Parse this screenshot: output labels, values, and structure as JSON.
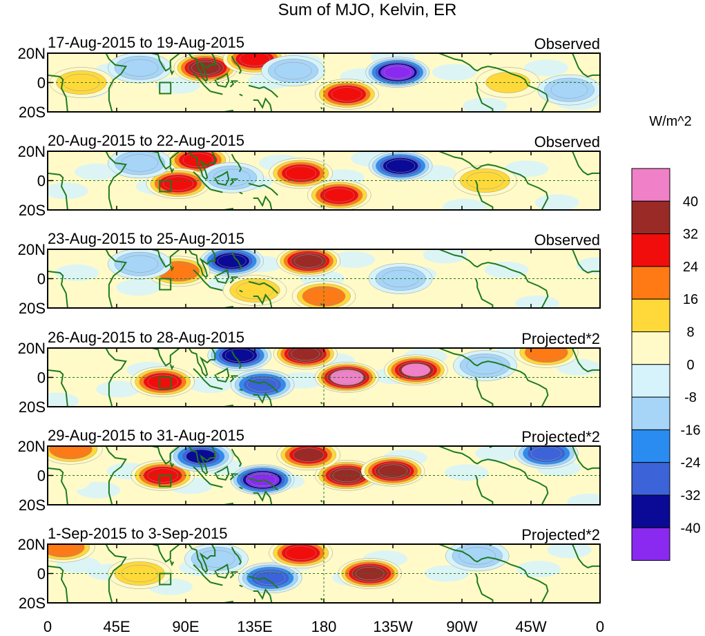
{
  "chart_data": {
    "type": "heatmap",
    "title": "Sum of MJO, Kelvin, ER",
    "units_label": "W/m^2",
    "colors": {
      "coast": "#1e7a1e",
      "equator_line": "#1e7a1e",
      "frame": "#000000"
    },
    "x_ticks": [
      "0",
      "45E",
      "90E",
      "135E",
      "180",
      "135W",
      "90W",
      "45W",
      "0"
    ],
    "x_tick_lons": [
      0,
      45,
      90,
      135,
      180,
      225,
      270,
      315,
      360
    ],
    "y_ticks": [
      "20N",
      "0",
      "20S"
    ],
    "lat_range": [
      -20,
      20
    ],
    "lon_range": [
      0,
      360
    ],
    "colorbar": {
      "labels": [
        "40",
        "32",
        "24",
        "16",
        "8",
        "0",
        "-8",
        "-16",
        "-24",
        "-32",
        "-40"
      ],
      "colors": [
        "#f080c8",
        "#9a2a26",
        "#f20d0d",
        "#ff7a14",
        "#ffd93a",
        "#fffac8",
        "#d6f3fb",
        "#a6d5f8",
        "#2a8cf0",
        "#3c64d8",
        "#0a0a96",
        "#8a2af0"
      ]
    },
    "panels": [
      {
        "date_range": "17-Aug-2015 to 19-Aug-2015",
        "kind": "Observed",
        "features": [
          {
            "lon": 103,
            "lat": 10,
            "value": 34
          },
          {
            "lon": 135,
            "lat": 16,
            "value": 30
          },
          {
            "lon": 195,
            "lat": -8,
            "value": 28
          },
          {
            "lon": 228,
            "lat": 7,
            "value": -42
          },
          {
            "lon": 160,
            "lat": 8,
            "value": -14
          },
          {
            "lon": 60,
            "lat": 10,
            "value": -12
          },
          {
            "lon": 22,
            "lat": 0,
            "value": 10
          },
          {
            "lon": 300,
            "lat": 0,
            "value": 8
          },
          {
            "lon": 340,
            "lat": -5,
            "value": -10
          }
        ]
      },
      {
        "date_range": "20-Aug-2015 to 22-Aug-2015",
        "kind": "Observed",
        "features": [
          {
            "lon": 98,
            "lat": 14,
            "value": 26
          },
          {
            "lon": 85,
            "lat": -2,
            "value": 30
          },
          {
            "lon": 165,
            "lat": 5,
            "value": 26
          },
          {
            "lon": 190,
            "lat": -10,
            "value": 28
          },
          {
            "lon": 230,
            "lat": 10,
            "value": -34
          },
          {
            "lon": 120,
            "lat": 2,
            "value": -12
          },
          {
            "lon": 60,
            "lat": 12,
            "value": -14
          },
          {
            "lon": 285,
            "lat": 0,
            "value": 12
          }
        ]
      },
      {
        "date_range": "23-Aug-2015 to 25-Aug-2015",
        "kind": "Observed",
        "features": [
          {
            "lon": 170,
            "lat": 12,
            "value": 34
          },
          {
            "lon": 120,
            "lat": 12,
            "value": -36
          },
          {
            "lon": 85,
            "lat": 5,
            "value": 22
          },
          {
            "lon": 180,
            "lat": -12,
            "value": 22
          },
          {
            "lon": 60,
            "lat": 10,
            "value": -10
          },
          {
            "lon": 135,
            "lat": -8,
            "value": 14
          },
          {
            "lon": 230,
            "lat": 0,
            "value": -10
          }
        ]
      },
      {
        "date_range": "26-Aug-2015 to 28-Aug-2015",
        "kind": "Projected*2",
        "features": [
          {
            "lon": 195,
            "lat": 0,
            "value": 42
          },
          {
            "lon": 240,
            "lat": 5,
            "value": 40
          },
          {
            "lon": 168,
            "lat": 16,
            "value": 36
          },
          {
            "lon": 125,
            "lat": 15,
            "value": -34
          },
          {
            "lon": 140,
            "lat": -5,
            "value": -30
          },
          {
            "lon": 75,
            "lat": -3,
            "value": 28
          },
          {
            "lon": 325,
            "lat": 17,
            "value": 18
          },
          {
            "lon": 285,
            "lat": 8,
            "value": -12
          }
        ]
      },
      {
        "date_range": "29-Aug-2015 to 31-Aug-2015",
        "kind": "Projected*2",
        "features": [
          {
            "lon": 140,
            "lat": -3,
            "value": -42
          },
          {
            "lon": 195,
            "lat": 0,
            "value": 34
          },
          {
            "lon": 225,
            "lat": 3,
            "value": 34
          },
          {
            "lon": 170,
            "lat": 14,
            "value": 32
          },
          {
            "lon": 75,
            "lat": 0,
            "value": 30
          },
          {
            "lon": 100,
            "lat": 13,
            "value": -32
          },
          {
            "lon": 15,
            "lat": 18,
            "value": 18
          },
          {
            "lon": 325,
            "lat": 15,
            "value": -30
          }
        ]
      },
      {
        "date_range": "1-Sep-2015 to 3-Sep-2015",
        "kind": "Projected*2",
        "features": [
          {
            "lon": 210,
            "lat": 0,
            "value": 34
          },
          {
            "lon": 145,
            "lat": -3,
            "value": -30
          },
          {
            "lon": 165,
            "lat": 14,
            "value": 28
          },
          {
            "lon": 10,
            "lat": 18,
            "value": 22
          },
          {
            "lon": 110,
            "lat": 10,
            "value": -14
          },
          {
            "lon": 280,
            "lat": 12,
            "value": -12
          },
          {
            "lon": 60,
            "lat": 0,
            "value": 10
          }
        ]
      }
    ]
  }
}
